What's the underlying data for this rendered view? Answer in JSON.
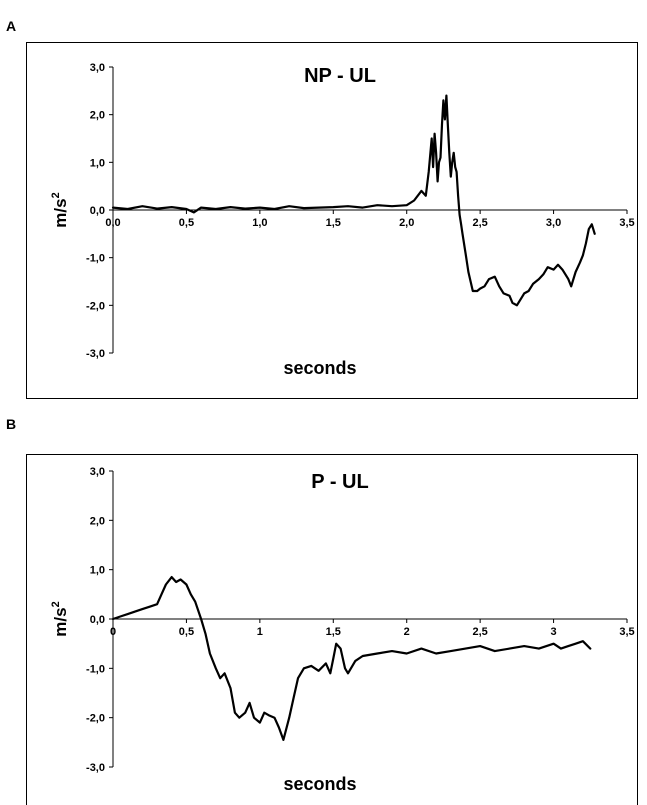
{
  "panels": [
    {
      "letter": "A"
    },
    {
      "letter": "B"
    }
  ],
  "chart_data": [
    {
      "type": "line",
      "title": "NP - UL",
      "xlabel": "seconds",
      "ylabel": "m/s",
      "ylabel_sup": "2",
      "xlim": [
        0,
        3.5
      ],
      "ylim": [
        -3,
        3
      ],
      "x_tick_values": [
        0,
        0.5,
        1,
        1.5,
        2,
        2.5,
        3,
        3.5
      ],
      "x_tick_labels": [
        "0,0",
        "0,5",
        "1,0",
        "1,5",
        "2,0",
        "2,5",
        "3,0",
        "3,5"
      ],
      "y_tick_values": [
        3,
        2,
        1,
        0,
        -1,
        -2,
        -3
      ],
      "y_tick_labels": [
        "3,0",
        "2,0",
        "1,0",
        "0,0",
        "-1,0",
        "-2,0",
        "-3,0"
      ],
      "grid": false,
      "series": [
        {
          "color": "#000000",
          "x": [
            0.0,
            0.1,
            0.2,
            0.3,
            0.4,
            0.5,
            0.55,
            0.6,
            0.7,
            0.8,
            0.9,
            1.0,
            1.1,
            1.2,
            1.3,
            1.4,
            1.5,
            1.6,
            1.7,
            1.8,
            1.9,
            2.0,
            2.05,
            2.1,
            2.13,
            2.15,
            2.17,
            2.18,
            2.19,
            2.2,
            2.21,
            2.22,
            2.23,
            2.24,
            2.25,
            2.26,
            2.27,
            2.28,
            2.29,
            2.3,
            2.31,
            2.32,
            2.33,
            2.34,
            2.35,
            2.36,
            2.37,
            2.38,
            2.4,
            2.42,
            2.45,
            2.48,
            2.5,
            2.53,
            2.56,
            2.6,
            2.63,
            2.66,
            2.7,
            2.72,
            2.75,
            2.78,
            2.8,
            2.83,
            2.86,
            2.9,
            2.93,
            2.96,
            3.0,
            3.03,
            3.06,
            3.1,
            3.12,
            3.15,
            3.18,
            3.2,
            3.22,
            3.24,
            3.26,
            3.28
          ],
          "y": [
            0.05,
            0.02,
            0.08,
            0.03,
            0.06,
            0.02,
            -0.05,
            0.05,
            0.02,
            0.06,
            0.03,
            0.05,
            0.02,
            0.08,
            0.04,
            0.05,
            0.06,
            0.08,
            0.05,
            0.1,
            0.08,
            0.1,
            0.2,
            0.4,
            0.3,
            0.8,
            1.5,
            0.9,
            1.6,
            1.2,
            0.6,
            1.0,
            1.1,
            1.8,
            2.3,
            1.9,
            2.4,
            1.8,
            1.2,
            0.7,
            1.0,
            1.2,
            0.9,
            0.8,
            0.3,
            -0.1,
            -0.3,
            -0.5,
            -0.9,
            -1.3,
            -1.7,
            -1.7,
            -1.65,
            -1.6,
            -1.45,
            -1.4,
            -1.6,
            -1.75,
            -1.8,
            -1.95,
            -2.0,
            -1.85,
            -1.75,
            -1.7,
            -1.55,
            -1.45,
            -1.35,
            -1.2,
            -1.25,
            -1.15,
            -1.25,
            -1.45,
            -1.6,
            -1.3,
            -1.1,
            -0.95,
            -0.7,
            -0.4,
            -0.3,
            -0.5
          ]
        }
      ]
    },
    {
      "type": "line",
      "title": "P - UL",
      "xlabel": "seconds",
      "ylabel": "m/s",
      "ylabel_sup": "2",
      "xlim": [
        0,
        3.5
      ],
      "ylim": [
        -3,
        3
      ],
      "x_tick_values": [
        0,
        0.5,
        1,
        1.5,
        2,
        2.5,
        3,
        3.5
      ],
      "x_tick_labels": [
        "0",
        "0,5",
        "1",
        "1,5",
        "2",
        "2,5",
        "3",
        "3,5"
      ],
      "y_tick_values": [
        3,
        2,
        1,
        0,
        -1,
        -2,
        -3
      ],
      "y_tick_labels": [
        "3,0",
        "2,0",
        "1,0",
        "0,0",
        "-1,0",
        "-2,0",
        "-3,0"
      ],
      "grid": false,
      "series": [
        {
          "color": "#000000",
          "x": [
            0.0,
            0.05,
            0.1,
            0.15,
            0.2,
            0.25,
            0.3,
            0.33,
            0.36,
            0.4,
            0.43,
            0.46,
            0.5,
            0.53,
            0.56,
            0.6,
            0.63,
            0.66,
            0.7,
            0.73,
            0.76,
            0.8,
            0.83,
            0.86,
            0.9,
            0.93,
            0.96,
            1.0,
            1.03,
            1.06,
            1.1,
            1.13,
            1.16,
            1.2,
            1.23,
            1.26,
            1.3,
            1.35,
            1.4,
            1.45,
            1.48,
            1.5,
            1.52,
            1.55,
            1.58,
            1.6,
            1.65,
            1.7,
            1.8,
            1.9,
            2.0,
            2.1,
            2.2,
            2.3,
            2.4,
            2.5,
            2.6,
            2.7,
            2.8,
            2.9,
            3.0,
            3.05,
            3.1,
            3.15,
            3.2,
            3.25
          ],
          "y": [
            0.0,
            0.05,
            0.1,
            0.15,
            0.2,
            0.25,
            0.3,
            0.5,
            0.7,
            0.85,
            0.75,
            0.8,
            0.7,
            0.5,
            0.35,
            0.0,
            -0.3,
            -0.7,
            -1.0,
            -1.2,
            -1.1,
            -1.4,
            -1.9,
            -2.0,
            -1.9,
            -1.7,
            -2.0,
            -2.1,
            -1.9,
            -1.95,
            -2.0,
            -2.2,
            -2.45,
            -2.0,
            -1.6,
            -1.2,
            -1.0,
            -0.95,
            -1.05,
            -0.9,
            -1.1,
            -0.8,
            -0.5,
            -0.6,
            -1.0,
            -1.1,
            -0.85,
            -0.75,
            -0.7,
            -0.65,
            -0.7,
            -0.6,
            -0.7,
            -0.65,
            -0.6,
            -0.55,
            -0.65,
            -0.6,
            -0.55,
            -0.6,
            -0.5,
            -0.6,
            -0.55,
            -0.5,
            -0.45,
            -0.6
          ]
        }
      ]
    }
  ]
}
